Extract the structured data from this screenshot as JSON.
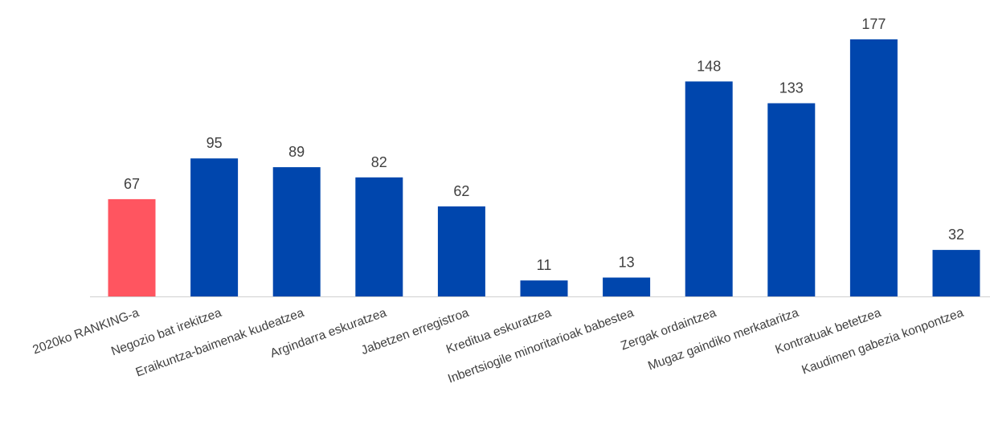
{
  "chart_data": {
    "type": "bar",
    "categories": [
      "2020ko RANKING-a",
      "Negozio bat irekitzea",
      "Eraikuntza-baimenak kudeatzea",
      "Argindarra eskuratzea",
      "Jabetzen erregistroa",
      "Kreditua eskuratzea",
      "Inbertsiogile minoritarioak babestea",
      "Zergak ordaintzea",
      "Mugaz gaindiko merkataritza",
      "Kontratuak betetzea",
      "Kaudimen gabezia konpontzea"
    ],
    "values": [
      67,
      95,
      89,
      82,
      62,
      11,
      13,
      148,
      133,
      177,
      32
    ],
    "data_labels": [
      "67",
      "95",
      "89",
      "82",
      "62",
      "11",
      "13",
      "148",
      "133",
      "177",
      "32"
    ],
    "highlight_index": 0,
    "colors": {
      "highlight": "#ff5560",
      "default": "#0046ad",
      "axis": "#d0d0d0"
    },
    "title": "",
    "xlabel": "",
    "ylabel": "",
    "ylim": [
      0,
      177
    ],
    "grid": false,
    "legend": "none"
  }
}
